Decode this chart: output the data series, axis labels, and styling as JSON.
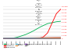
{
  "title": "Figure 11 - Number of generating facilities connected to the distribution network conceded to ERDF between 2000 and September 2013 by type of generation",
  "years": [
    2000,
    2001,
    2002,
    2003,
    2004,
    2005,
    2006,
    2007,
    2008,
    2009,
    2010,
    2011,
    2012,
    2013
  ],
  "series": {
    "Eolian / wind": {
      "color": "#00b050",
      "values": [
        50,
        100,
        200,
        450,
        850,
        1300,
        1900,
        2600,
        3400,
        4100,
        4700,
        5000,
        5300,
        5450
      ]
    },
    "Photovoltaic": {
      "color": "#ff0000",
      "values": [
        0,
        0,
        0,
        0,
        5,
        10,
        25,
        60,
        180,
        550,
        1800,
        4800,
        7800,
        9200
      ]
    },
    "Cogeneration": {
      "color": "#c0504d",
      "values": [
        280,
        290,
        300,
        310,
        320,
        330,
        345,
        360,
        380,
        400,
        420,
        440,
        460,
        470
      ]
    },
    "Hydraulic": {
      "color": "#4bacc6",
      "values": [
        180,
        190,
        200,
        210,
        220,
        230,
        240,
        255,
        265,
        280,
        295,
        310,
        325,
        335
      ]
    },
    "Biomass": {
      "color": "#f79646",
      "values": [
        5,
        8,
        12,
        20,
        35,
        55,
        80,
        110,
        145,
        175,
        210,
        245,
        275,
        295
      ]
    },
    "Emergency generation, incineration": {
      "color": "#7030a0",
      "values": [
        15,
        18,
        22,
        26,
        30,
        35,
        40,
        46,
        52,
        58,
        64,
        70,
        76,
        80
      ]
    },
    "Other": {
      "color": "#808080",
      "values": [
        3,
        4,
        5,
        6,
        7,
        8,
        9,
        10,
        11,
        12,
        13,
        14,
        15,
        16
      ]
    }
  },
  "ylim": [
    0,
    10000
  ],
  "yticks": [
    0,
    1000,
    2000,
    3000,
    4000,
    5000,
    6000,
    7000,
    8000,
    9000,
    10000
  ],
  "ytick_labels": [
    "0",
    "1 000",
    "2 000",
    "3 000",
    "4 000",
    "5 000",
    "6 000",
    "7 000",
    "8 000",
    "9 000",
    "10 000"
  ],
  "background_color": "#ffffff",
  "grid_color": "#c8c8c8",
  "ytick_color": "#ff0000",
  "line_width": 0.6
}
